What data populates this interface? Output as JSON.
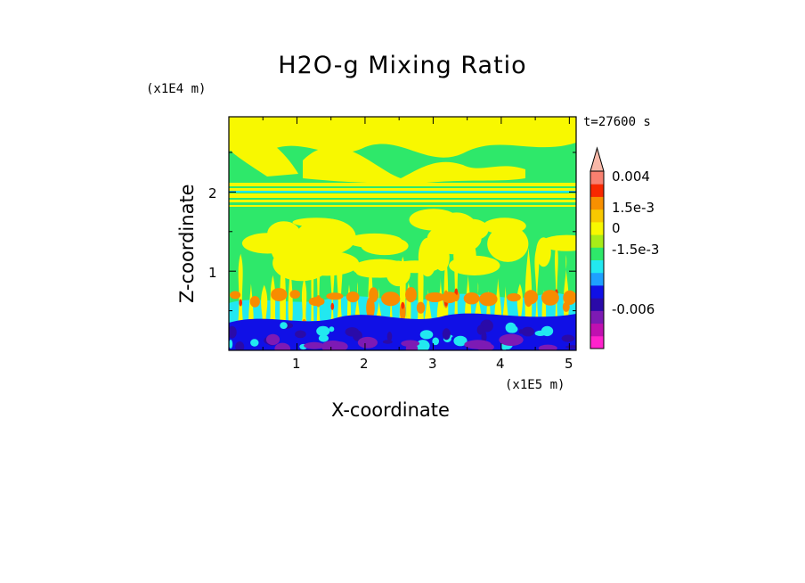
{
  "chart_data": {
    "type": "heatmap",
    "title": "H2O-g Mixing Ratio",
    "xlabel": "X-coordinate",
    "ylabel": "Z-coordinate",
    "x_scale_label": "(x1E5 m)",
    "z_scale_label": "(x1E4 m)",
    "time_label": "t=27600 s",
    "xlim": [
      0.0,
      5.1
    ],
    "ylim": [
      0.0,
      2.95
    ],
    "x_ticks": [
      1,
      2,
      3,
      4,
      5
    ],
    "x_tick_labels": [
      "1",
      "2",
      "3",
      "4",
      "5"
    ],
    "y_ticks": [
      1,
      2
    ],
    "y_tick_labels": [
      "1",
      "2"
    ],
    "colorbar": {
      "levels": [
        {
          "color": "#ff22cc"
        },
        {
          "color": "#c010b0"
        },
        {
          "color": "#7d1ab4"
        },
        {
          "color": "#2a0aa8"
        },
        {
          "color": "#1010e6"
        },
        {
          "color": "#1ea0ff"
        },
        {
          "color": "#22e8f0"
        },
        {
          "color": "#2ee86a"
        },
        {
          "color": "#a8ec18"
        },
        {
          "color": "#f8f800"
        },
        {
          "color": "#f8c800"
        },
        {
          "color": "#f89000"
        },
        {
          "color": "#f82800"
        },
        {
          "color": "#f88070"
        },
        {
          "color": "#f8b8a8"
        }
      ],
      "labels": [
        "0.004",
        "1.5e-3",
        "0",
        "-1.5e-3",
        "-0.006"
      ]
    },
    "field_colors": {
      "green": "#2ee86a",
      "yellow": "#f8f800",
      "cyan": "#22e8f0",
      "blue": "#1010e6",
      "navy": "#2a0aa8",
      "purple": "#7d1ab4",
      "orange": "#f88c00",
      "red": "#f83000"
    }
  }
}
